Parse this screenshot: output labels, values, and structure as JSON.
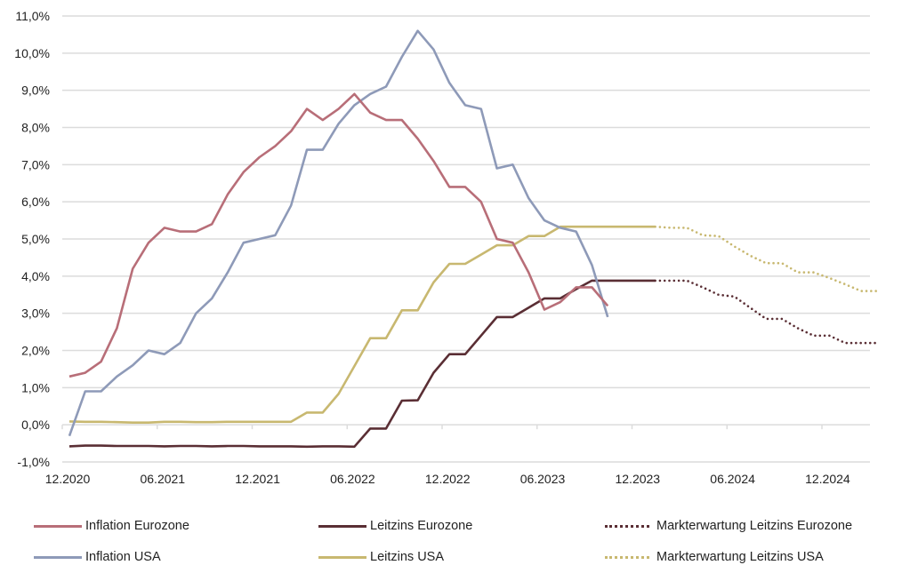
{
  "chart_data": {
    "type": "line",
    "title": "",
    "xlabel": "",
    "ylabel": "",
    "ylim": [
      -1.0,
      11.0
    ],
    "yticks": [
      "-1,0%",
      "0,0%",
      "1,0%",
      "2,0%",
      "3,0%",
      "4,0%",
      "5,0%",
      "6,0%",
      "7,0%",
      "8,0%",
      "9,0%",
      "10,0%",
      "11,0%"
    ],
    "ytick_values": [
      -1,
      0,
      1,
      2,
      3,
      4,
      5,
      6,
      7,
      8,
      9,
      10,
      11
    ],
    "xticks": [
      "12.2020",
      "06.2021",
      "12.2021",
      "06.2022",
      "12.2022",
      "06.2023",
      "12.2023",
      "06.2024",
      "12.2024"
    ],
    "xtick_month_index": [
      0,
      6,
      12,
      18,
      24,
      30,
      36,
      42,
      48
    ],
    "x_unit": "months since 12.2020",
    "grid": true,
    "legend_position": "bottom",
    "series": [
      {
        "name": "Inflation Eurozone",
        "color": "#b86e78",
        "style": "solid",
        "start_month": 0,
        "values": [
          1.3,
          1.4,
          1.7,
          2.6,
          4.2,
          4.9,
          5.3,
          5.2,
          5.2,
          5.4,
          6.2,
          6.8,
          7.2,
          7.5,
          7.9,
          8.5,
          8.2,
          8.5,
          8.9,
          8.4,
          8.2,
          8.2,
          7.7,
          7.1,
          6.4,
          6.4,
          6.0,
          5.0,
          4.9,
          4.1,
          3.1,
          3.3,
          3.7,
          3.7,
          3.2
        ]
      },
      {
        "name": "Inflation USA",
        "color": "#8e9ab8",
        "style": "solid",
        "start_month": 0,
        "values": [
          -0.3,
          0.9,
          0.9,
          1.3,
          1.6,
          2.0,
          1.9,
          2.2,
          3.0,
          3.4,
          4.1,
          4.9,
          5.0,
          5.1,
          5.9,
          7.4,
          7.4,
          8.1,
          8.6,
          8.9,
          9.1,
          9.9,
          10.6,
          10.1,
          9.2,
          8.6,
          8.5,
          6.9,
          7.0,
          6.1,
          5.5,
          5.3,
          5.2,
          4.3,
          2.9
        ]
      },
      {
        "name": "Leitzins Eurozone",
        "color": "#5a2e34",
        "style": "solid",
        "start_month": 0,
        "values": [
          -0.58,
          -0.56,
          -0.56,
          -0.57,
          -0.57,
          -0.57,
          -0.58,
          -0.57,
          -0.57,
          -0.58,
          -0.57,
          -0.57,
          -0.58,
          -0.58,
          -0.58,
          -0.59,
          -0.58,
          -0.58,
          -0.59,
          -0.1,
          -0.1,
          0.65,
          0.66,
          1.4,
          1.9,
          1.9,
          2.4,
          2.9,
          2.9,
          3.15,
          3.4,
          3.4,
          3.65,
          3.88,
          3.88,
          3.88,
          3.88,
          3.88
        ]
      },
      {
        "name": "Leitzins USA",
        "color": "#c8b870",
        "style": "solid",
        "start_month": 0,
        "values": [
          0.09,
          0.08,
          0.08,
          0.07,
          0.06,
          0.06,
          0.08,
          0.08,
          0.07,
          0.07,
          0.08,
          0.08,
          0.08,
          0.08,
          0.08,
          0.33,
          0.33,
          0.83,
          1.58,
          2.33,
          2.33,
          3.08,
          3.08,
          3.83,
          4.33,
          4.33,
          4.58,
          4.83,
          4.83,
          5.08,
          5.08,
          5.33,
          5.33,
          5.33,
          5.33,
          5.33,
          5.33,
          5.33
        ]
      },
      {
        "name": "Markterwartung Leitzins Eurozone",
        "color": "#5a2e34",
        "style": "dotted",
        "start_month": 37,
        "values": [
          3.88,
          3.88,
          3.88,
          3.7,
          3.5,
          3.45,
          3.15,
          2.85,
          2.85,
          2.6,
          2.4,
          2.4,
          2.2,
          2.2,
          2.2
        ]
      },
      {
        "name": "Markterwartung Leitzins USA",
        "color": "#c8b870",
        "style": "dotted",
        "start_month": 37,
        "values": [
          5.33,
          5.3,
          5.3,
          5.1,
          5.08,
          4.8,
          4.55,
          4.35,
          4.35,
          4.1,
          4.1,
          3.95,
          3.78,
          3.6,
          3.6
        ]
      }
    ]
  },
  "legend": {
    "items": [
      {
        "label": "Inflation Eurozone",
        "color": "#b86e78",
        "style": "solid"
      },
      {
        "label": "Leitzins Eurozone",
        "color": "#5a2e34",
        "style": "solid"
      },
      {
        "label": "Markterwartung Leitzins Eurozone",
        "color": "#5a2e34",
        "style": "dotted"
      },
      {
        "label": "Inflation USA",
        "color": "#8e9ab8",
        "style": "solid"
      },
      {
        "label": "Leitzins USA",
        "color": "#c8b870",
        "style": "solid"
      },
      {
        "label": "Markterwartung Leitzins USA",
        "color": "#c8b870",
        "style": "dotted"
      }
    ]
  }
}
